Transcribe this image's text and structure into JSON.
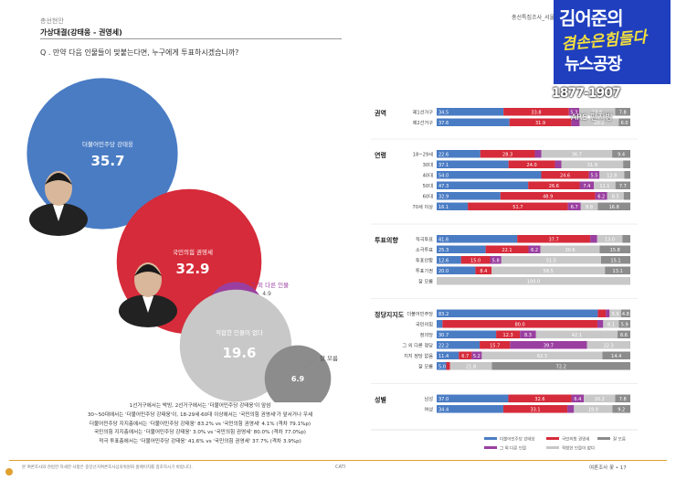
{
  "header": {
    "section": "총선현안",
    "title": "가상대결(강태웅 - 권영세)",
    "question": "Q . 만약 다음 인물들이 맞붙는다면, 누구에게 투표하시겠습니까?",
    "right": "총선특집조사_서울 용산구"
  },
  "overlay": {
    "logo_line1": "김어준의",
    "logo_line2": "겸손은힘들다",
    "logo_line3": "뉴스공장",
    "years": "1877-1907",
    "ars": "ARS 편지방"
  },
  "notes": [
    "1선거구에서는 박빙, 2선거구에서는 '더불어민주당 강태웅'이 앞섬",
    "30~50대에서는 '더불어민주당 강태웅'이, 18-29세·60대 이상에서는 '국민의힘 권영세'가 앞서거나 우세",
    "더불어민주당 지지층에서는 '더불어민주당 강태웅' 83.2% vs '국민의힘 권영세' 4.1% (격차 79.1%p)",
    "국민의힘 지지층에서는 '더불어민주당 강태웅' 3.0% vs '국민의힘 권영세' 80.0% (격차 77.0%p)",
    "적극 투표층에서는 '더불어민주당 강태웅' 41.6% vs '국민의힘 권영세' 37.7% (격차 3.9%p)"
  ],
  "footer": {
    "left": "본 여론조사와 관련한 자세한 사항은 중앙선거여론조사심의위원회 홈페이지를 참조하시기 바랍니다.",
    "center": "CATI",
    "right": "여론조사 꽃 • 17"
  },
  "colors": {
    "dem": "#4a7cc4",
    "ppp": "#d62b3a",
    "other": "#9a3fa0",
    "none": "#c8c8c8",
    "dk": "#8c8c8c"
  },
  "chart_data": [
    {
      "type": "bubble",
      "items": [
        {
          "label": "더불어민주당 강태웅",
          "value": 35.7
        },
        {
          "label": "국민의힘 권영세",
          "value": 32.9
        },
        {
          "label": "그 외 다른 인물",
          "value": 4.9
        },
        {
          "label": "적합한 인물이 없다",
          "value": 19.6
        },
        {
          "label": "잘 모름",
          "value": 6.9
        }
      ]
    },
    {
      "type": "bar",
      "stacked": true,
      "series": [
        "더불어민주당 강태웅",
        "국민의힘 권영세",
        "그 외 다른 인물",
        "적합한 인물이 없다",
        "잘 모름"
      ],
      "groups": [
        {
          "name": "권역",
          "rows": [
            {
              "label": "제1선거구",
              "values": [
                34.5,
                33.8,
                5.3,
                18.6,
                7.8
              ]
            },
            {
              "label": "제2선거구",
              "values": [
                37.6,
                31.9,
                4.3,
                20.2,
                6.0
              ]
            }
          ]
        },
        {
          "name": "연령",
          "rows": [
            {
              "label": "18~29세",
              "values": [
                22.6,
                28.3,
                3.4,
                36.7,
                9.4
              ]
            },
            {
              "label": "30대",
              "values": [
                37.1,
                24.0,
                3.3,
                31.9,
                3.7
              ]
            },
            {
              "label": "40대",
              "values": [
                54.0,
                24.6,
                5.5,
                12.8,
                3.1
              ]
            },
            {
              "label": "50대",
              "values": [
                47.3,
                26.6,
                7.4,
                11.1,
                7.7
              ]
            },
            {
              "label": "60대",
              "values": [
                32.9,
                48.9,
                6.2,
                8.5,
                3.4
              ]
            },
            {
              "label": "70세 이상",
              "values": [
                16.1,
                51.7,
                6.7,
                8.8,
                16.8
              ]
            }
          ]
        },
        {
          "name": "투표의향",
          "rows": [
            {
              "label": "적극투표",
              "values": [
                41.6,
                37.7,
                3.6,
                13.0,
                4.1
              ]
            },
            {
              "label": "소극투표",
              "values": [
                25.3,
                22.1,
                6.2,
                30.6,
                15.8
              ]
            },
            {
              "label": "투표안함",
              "values": [
                12.6,
                15.0,
                5.8,
                51.5,
                15.1
              ]
            },
            {
              "label": "투표기권",
              "values": [
                20.0,
                8.4,
                0.0,
                58.5,
                13.1
              ]
            },
            {
              "label": "잘 모름",
              "values": [
                0.0,
                0.0,
                0.0,
                100.0,
                0.0
              ]
            }
          ]
        },
        {
          "name": "정당지지도",
          "rows": [
            {
              "label": "더불어민주당",
              "values": [
                83.2,
                4.1,
                2.0,
                5.9,
                4.8
              ]
            },
            {
              "label": "국민의힘",
              "values": [
                3.0,
                80.0,
                3.0,
                8.1,
                5.9
              ]
            },
            {
              "label": "정의당",
              "values": [
                30.7,
                12.3,
                8.3,
                42.1,
                6.6
              ]
            },
            {
              "label": "그 외 다른 정당",
              "values": [
                22.2,
                15.7,
                39.7,
                22.3,
                0.1
              ]
            },
            {
              "label": "지지 정당 없음",
              "values": [
                11.4,
                6.7,
                5.2,
                62.3,
                14.4
              ]
            },
            {
              "label": "잘 모름",
              "values": [
                5.0,
                2.0,
                0.0,
                21.8,
                72.2
              ]
            }
          ]
        },
        {
          "name": "성별",
          "rows": [
            {
              "label": "남성",
              "values": [
                37.0,
                32.6,
                6.4,
                16.2,
                7.8
              ]
            },
            {
              "label": "여성",
              "values": [
                34.4,
                33.1,
                3.4,
                19.9,
                9.2
              ]
            }
          ]
        }
      ],
      "legend": [
        "더불어민주당 강태웅",
        "국민의힘 권영세",
        "그 외 다른 인물",
        "적합한 인물이 없다",
        "잘 모름"
      ]
    }
  ]
}
